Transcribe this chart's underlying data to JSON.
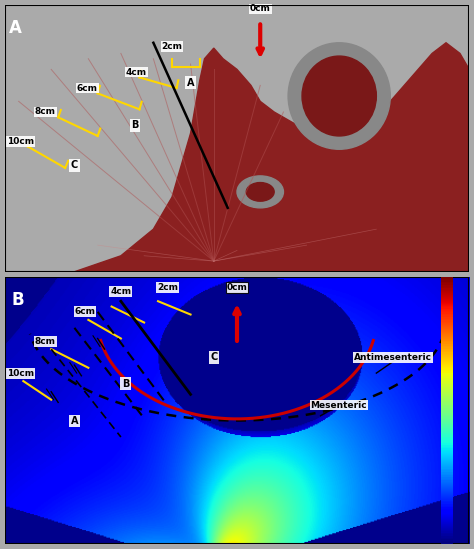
{
  "figure_width": 4.74,
  "figure_height": 5.49,
  "dpi": 100,
  "bg_color": "#aaaaaa",
  "panel_A": {
    "tissue_color": "#8B2020",
    "tissue_dark": "#5a1010",
    "tissue_light": "#c04040",
    "grey_bg": "#9a9a9a",
    "yellow": "#FFD700",
    "black_line": "black",
    "red_arrow": "#DD0000",
    "labels_dist": [
      "2cm",
      "4cm",
      "6cm",
      "8cm",
      "10cm",
      "0cm"
    ],
    "labels_region": [
      "A",
      "B",
      "C"
    ]
  },
  "panel_B": {
    "yellow": "#FFD700",
    "black_line": "black",
    "red_arrow": "#DD0000",
    "red_arc": "#CC0000",
    "dotted": "black",
    "labels_dist": [
      "2cm",
      "4cm",
      "6cm",
      "8cm",
      "10cm",
      "0cm"
    ],
    "labels_region": [
      "A",
      "B",
      "C"
    ],
    "side_labels": [
      "Antimesenteric",
      "Mesenteric"
    ]
  }
}
